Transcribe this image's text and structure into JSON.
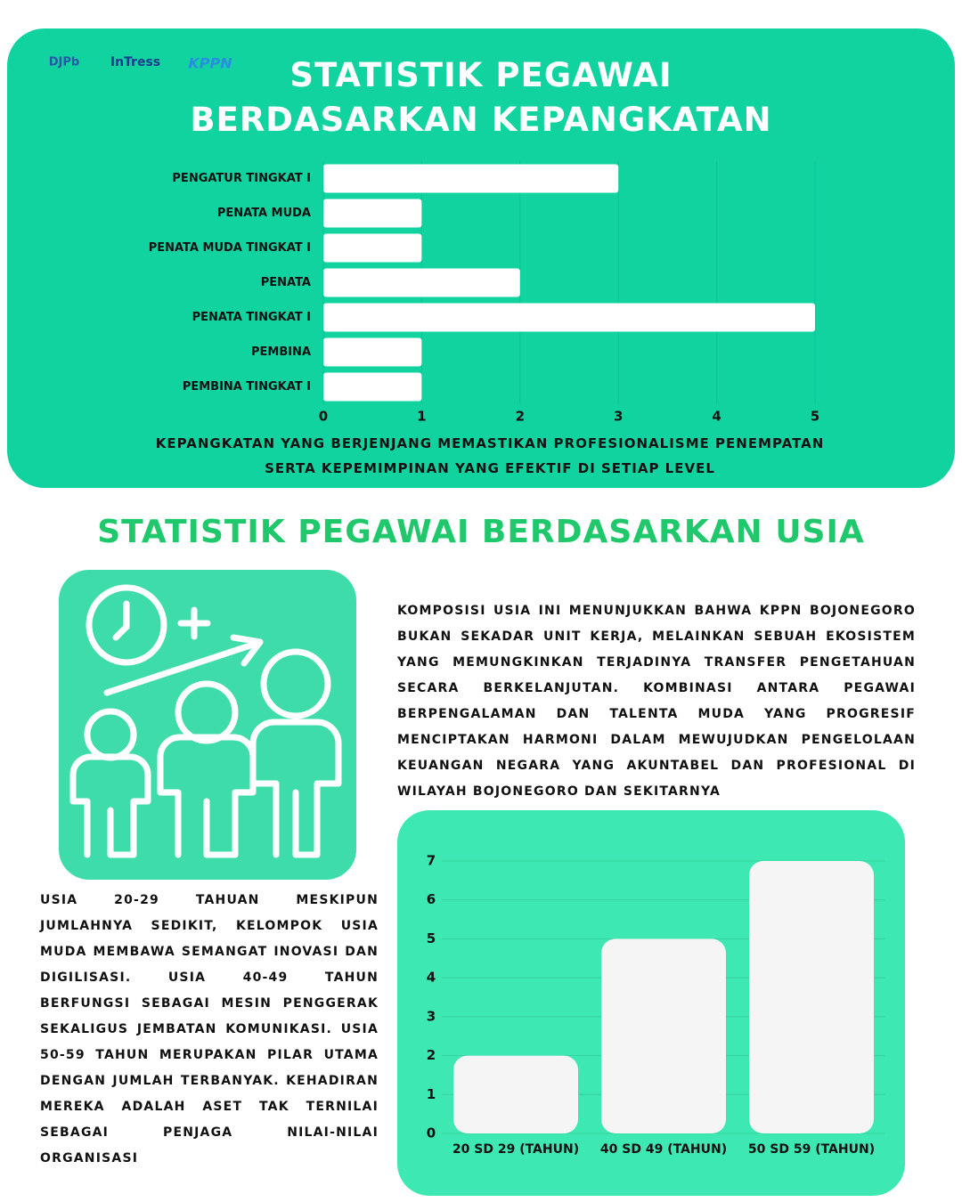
{
  "logos": [
    "DJPb",
    "InTress",
    "KPPN"
  ],
  "chart_data": [
    {
      "type": "bar",
      "orientation": "horizontal",
      "title": "STATISTIK PEGAWAI BERDASARKAN KEPANGKATAN",
      "categories": [
        "PENGATUR TINGKAT I",
        "PENATA MUDA",
        "PENATA MUDA TINGKAT I",
        "PENATA",
        "PENATA TINGKAT I",
        "PEMBINA",
        "PEMBINA TINGKAT I"
      ],
      "values": [
        3,
        1,
        1,
        2,
        5,
        1,
        1
      ],
      "color": "#ffffff",
      "xlim": [
        0,
        5
      ],
      "xticks": [
        0,
        1,
        2,
        3,
        4,
        5
      ],
      "grid": true,
      "caption": "KEPANGKATAN YANG BERJENJANG MEMASTIKAN PROFESIONALISME PENEMPATAN SERTA KEPEMIMPINAN YANG EFEKTIF DI SETIAP LEVEL"
    },
    {
      "type": "bar",
      "orientation": "vertical",
      "title": "STATISTIK PEGAWAI BERDASARKAN USIA",
      "categories": [
        "20 SD 29 (TAHUN)",
        "40 SD 49 (TAHUN)",
        "50 SD 59 (TAHUN)"
      ],
      "values": [
        2,
        5,
        7
      ],
      "color": "#f5f5f5",
      "ylim": [
        0,
        7
      ],
      "yticks": [
        0,
        1,
        2,
        3,
        4,
        5,
        6,
        7
      ],
      "grid": true
    }
  ],
  "paragraphs": [
    "KOMPOSISI USIA INI MENUNJUKKAN BAHWA KPPN BOJONEGORO BUKAN SEKADAR UNIT KERJA, MELAINKAN SEBUAH EKOSISTEM YANG MEMUNGKINKAN TERJADINYA TRANSFER PENGETAHUAN SECARA BERKELANJUTAN. KOMBINASI ANTARA PEGAWAI BERPENGALAMAN DAN TALENTA MUDA YANG PROGRESIF MENCIPTAKAN HARMONI DALAM MEWUJUDKAN PENGELOLAAN KEUANGAN NEGARA YANG AKUNTABEL DAN PROFESIONAL DI WILAYAH BOJONEGORO DAN SEKITARNYA",
    "USIA 20-29 TAHUAN MESKIPUN JUMLAHNYA SEDIKIT, KELOMPOK USIA MUDA MEMBAWA SEMANGAT INOVASI DAN DIGILISASI. USIA 40-49 TAHUN BERFUNGSI SEBAGAI MESIN PENGGERAK SEKALIGUS JEMBATAN KOMUNIKASI. USIA 50-59 TAHUN MERUPAKAN PILAR UTAMA DENGAN JUMLAH TERBANYAK. KEHADIRAN MEREKA ADALAH ASET TAK TERNILAI SEBAGAI PENJAGA NILAI-NILAI ORGANISASI"
  ]
}
